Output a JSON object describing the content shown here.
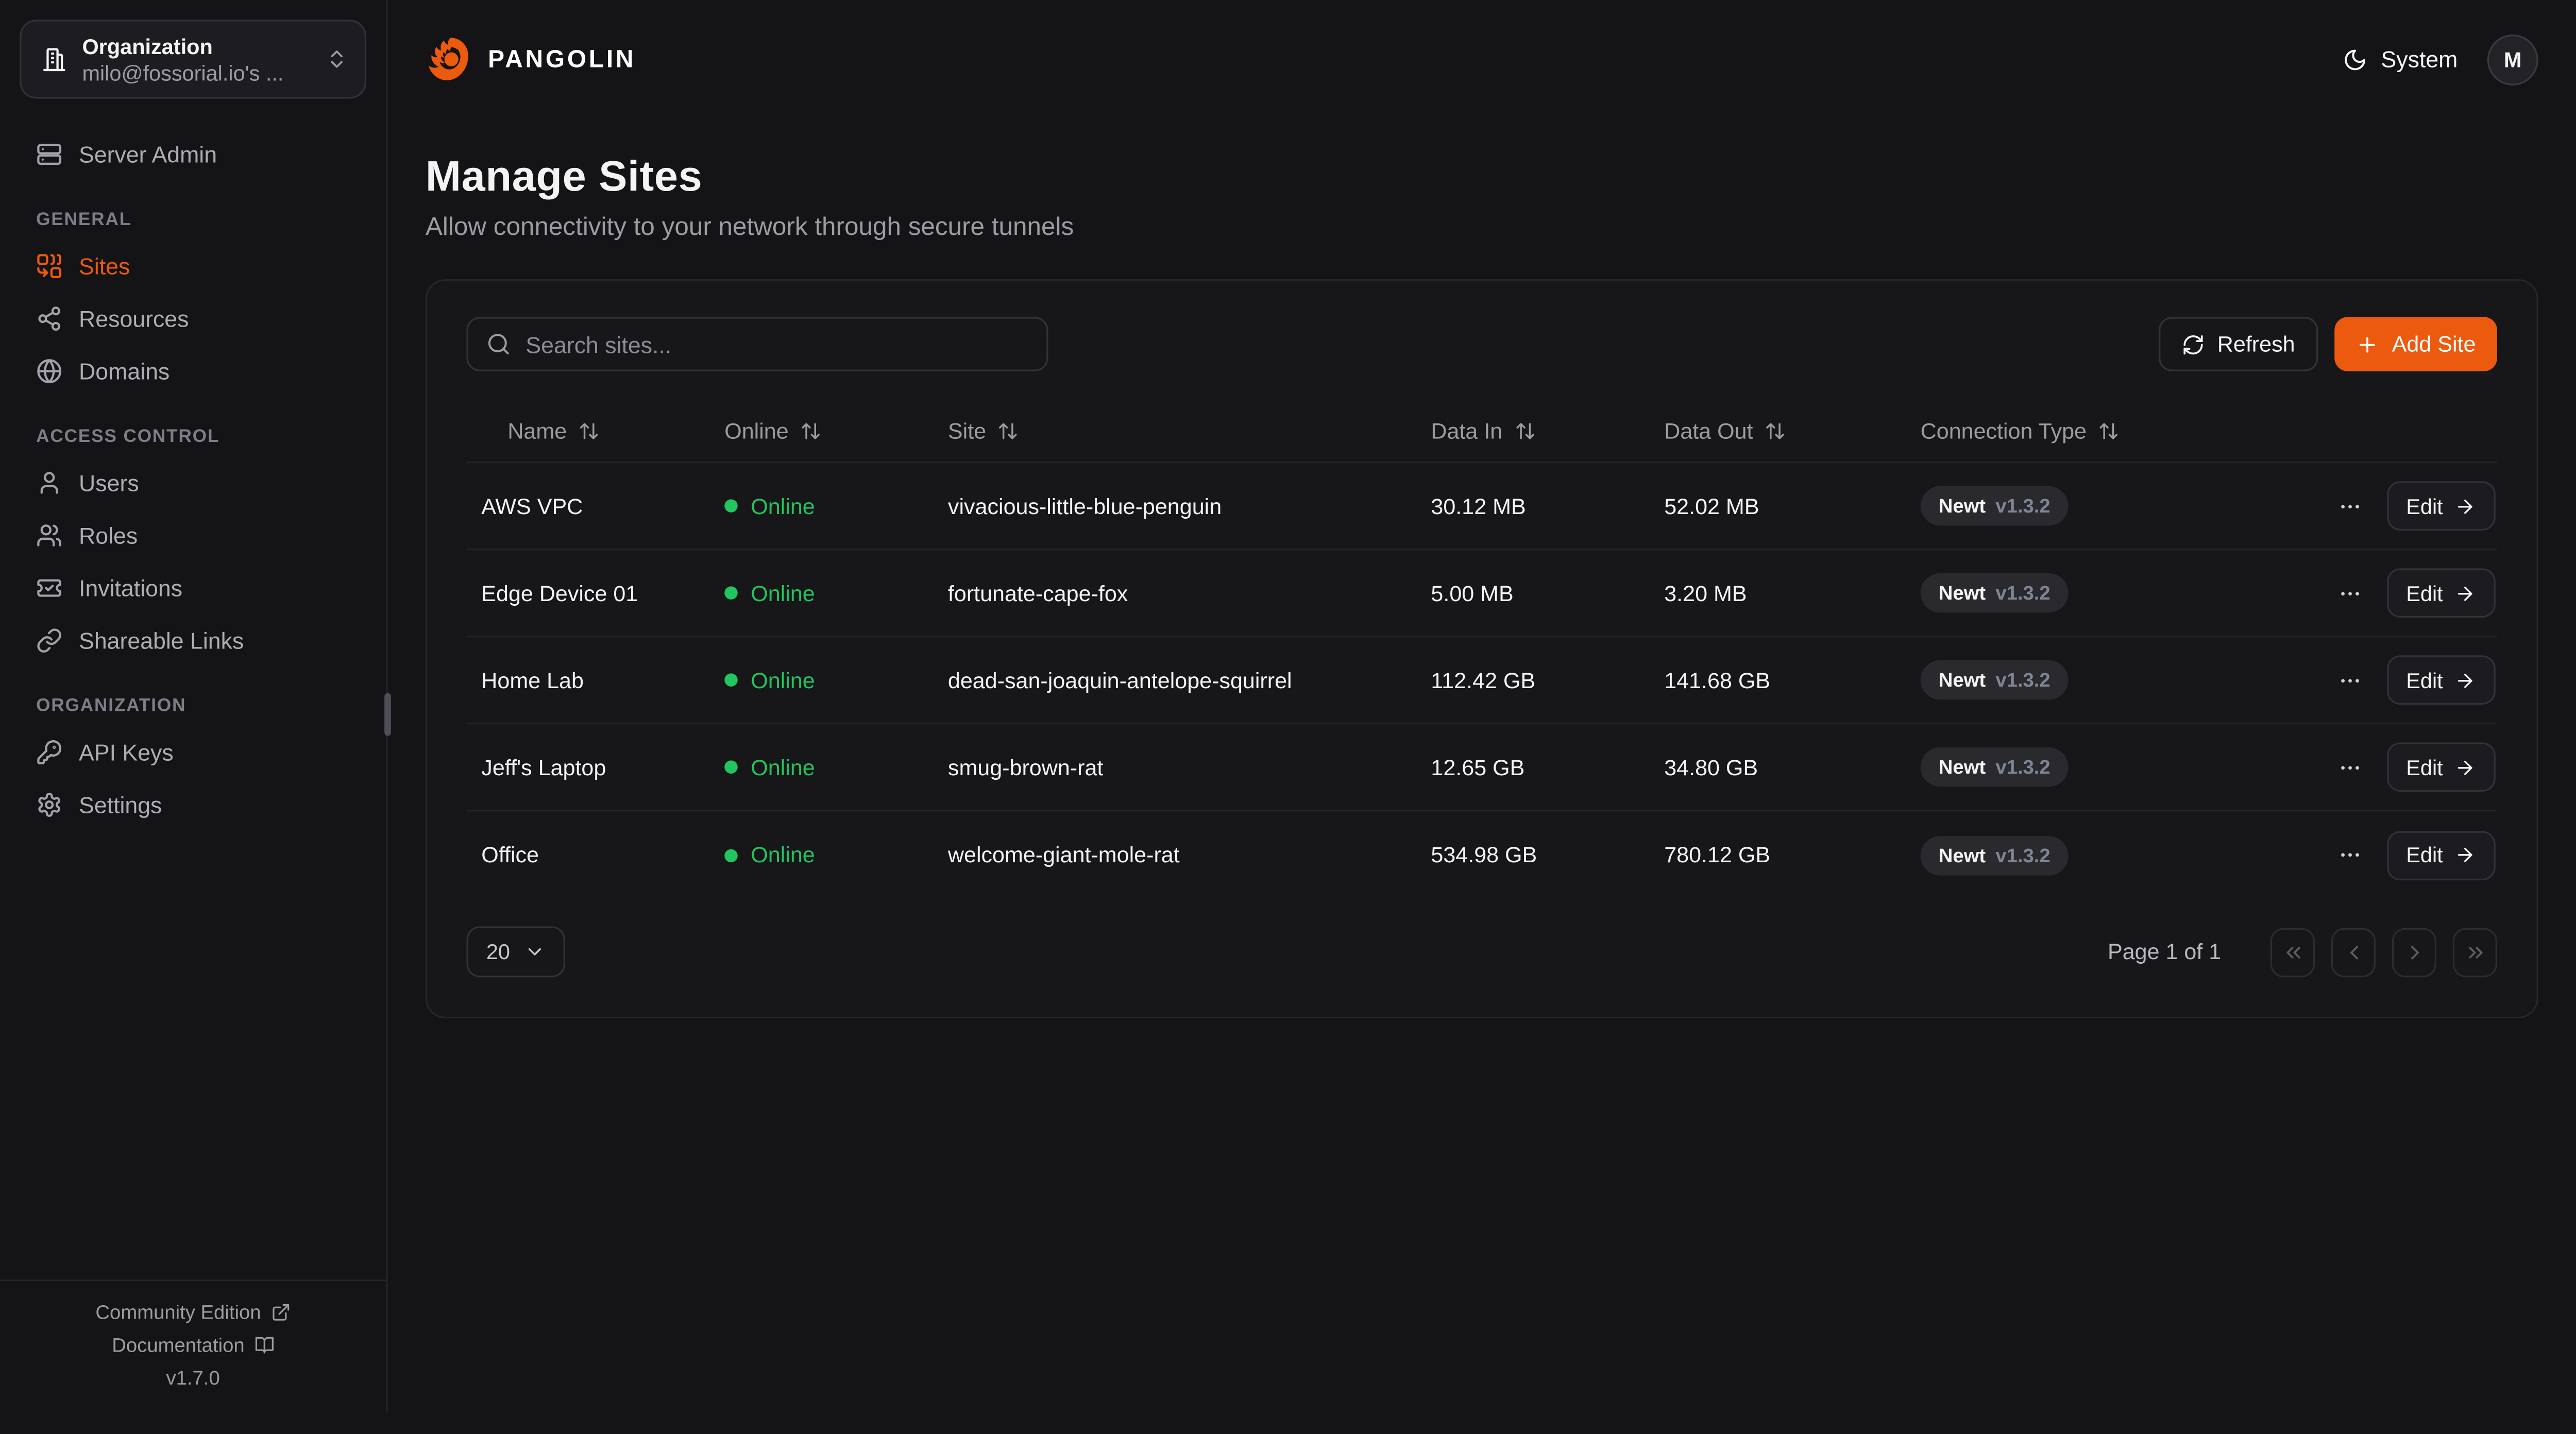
{
  "colors": {
    "accent": "#ec5a0e",
    "online": "#23c55e"
  },
  "sidebar": {
    "org_switcher": {
      "title": "Organization",
      "subtitle": "milo@fossorial.io's ...",
      "icon": "building-icon"
    },
    "server_admin": {
      "label": "Server Admin",
      "icon": "server-icon"
    },
    "sections": [
      {
        "label": "GENERAL",
        "items": [
          {
            "label": "Sites",
            "icon": "combine-icon",
            "active": true
          },
          {
            "label": "Resources",
            "icon": "share-icon",
            "active": false
          },
          {
            "label": "Domains",
            "icon": "globe-icon",
            "active": false
          }
        ]
      },
      {
        "label": "ACCESS CONTROL",
        "items": [
          {
            "label": "Users",
            "icon": "user-icon",
            "active": false
          },
          {
            "label": "Roles",
            "icon": "users-icon",
            "active": false
          },
          {
            "label": "Invitations",
            "icon": "ticket-check-icon",
            "active": false
          },
          {
            "label": "Shareable Links",
            "icon": "link-icon",
            "active": false
          }
        ]
      },
      {
        "label": "ORGANIZATION",
        "items": [
          {
            "label": "API Keys",
            "icon": "key-icon",
            "active": false
          },
          {
            "label": "Settings",
            "icon": "gear-icon",
            "active": false
          }
        ]
      }
    ],
    "footer": {
      "community": "Community Edition",
      "docs": "Documentation",
      "version": "v1.7.0"
    }
  },
  "header": {
    "brand": "PANGOLIN",
    "theme_label": "System",
    "avatar_initial": "M"
  },
  "page": {
    "title": "Manage Sites",
    "subtitle": "Allow connectivity to your network through secure tunnels"
  },
  "toolbar": {
    "search_placeholder": "Search sites...",
    "refresh_label": "Refresh",
    "add_site_label": "Add Site"
  },
  "table": {
    "columns": [
      "Name",
      "Online",
      "Site",
      "Data In",
      "Data Out",
      "Connection Type"
    ],
    "edit_label": "Edit",
    "rows": [
      {
        "name": "AWS VPC",
        "status": "Online",
        "site": "vivacious-little-blue-penguin",
        "data_in": "30.12 MB",
        "data_out": "52.02 MB",
        "conn": "Newt",
        "version": "v1.3.2"
      },
      {
        "name": "Edge Device 01",
        "status": "Online",
        "site": "fortunate-cape-fox",
        "data_in": "5.00 MB",
        "data_out": "3.20 MB",
        "conn": "Newt",
        "version": "v1.3.2"
      },
      {
        "name": "Home Lab",
        "status": "Online",
        "site": "dead-san-joaquin-antelope-squirrel",
        "data_in": "112.42 GB",
        "data_out": "141.68 GB",
        "conn": "Newt",
        "version": "v1.3.2"
      },
      {
        "name": "Jeff's Laptop",
        "status": "Online",
        "site": "smug-brown-rat",
        "data_in": "12.65 GB",
        "data_out": "34.80 GB",
        "conn": "Newt",
        "version": "v1.3.2"
      },
      {
        "name": "Office",
        "status": "Online",
        "site": "welcome-giant-mole-rat",
        "data_in": "534.98 GB",
        "data_out": "780.12 GB",
        "conn": "Newt",
        "version": "v1.3.2"
      }
    ]
  },
  "pagination": {
    "page_size": "20",
    "page_info": "Page 1 of 1"
  }
}
